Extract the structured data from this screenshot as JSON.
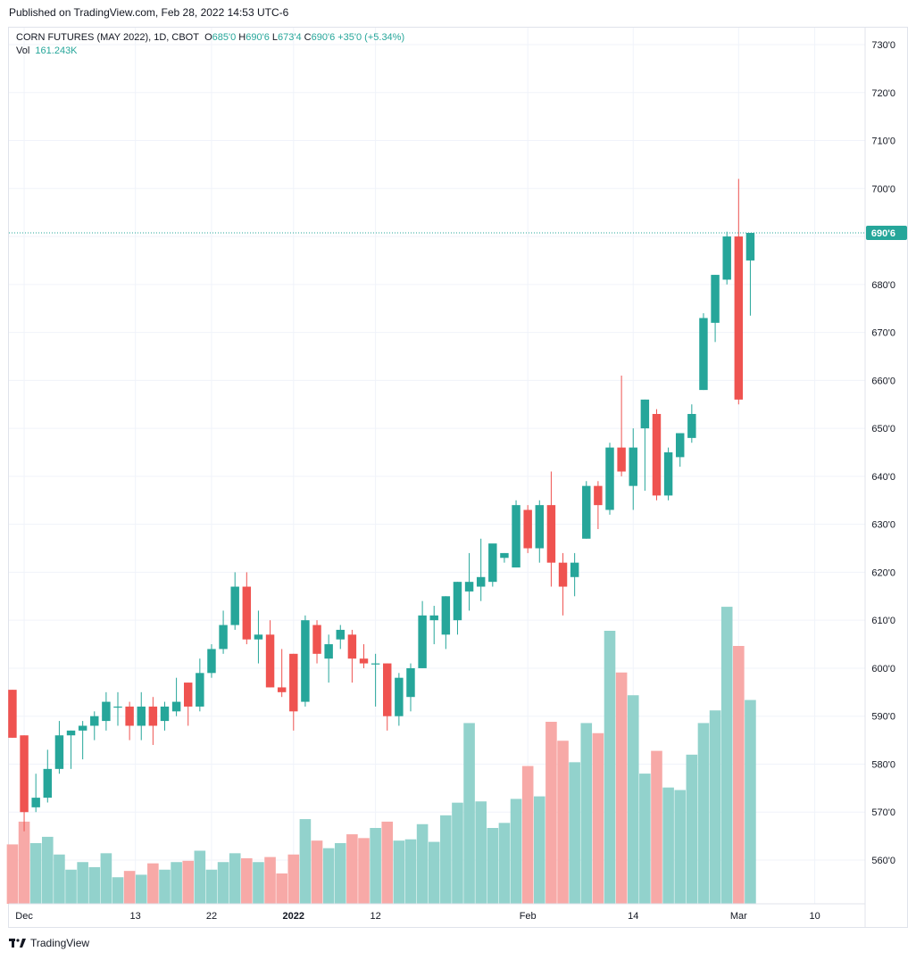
{
  "header": {
    "published_text": "Published on TradingView.com, Feb 28, 2022 14:53 UTC-6"
  },
  "legend": {
    "symbol": "CORN FUTURES (MAY 2022), 1D, CBOT",
    "o_label": "O",
    "o_value": "685'0",
    "h_label": "H",
    "h_value": "690'6",
    "l_label": "L",
    "l_value": "673'4",
    "c_label": "C",
    "c_value": "690'6",
    "change": "+35'0 (+5.34%)",
    "vol_label": "Vol",
    "vol_value": "161.243K"
  },
  "footer": {
    "brand": "TradingView"
  },
  "colors": {
    "up": "#26a69a",
    "down": "#ef5350",
    "vol_up": "#92d2cc",
    "vol_down": "#f7a9a7",
    "grid": "#f0f3fa",
    "axis_text": "#131722"
  },
  "chart_data": {
    "type": "candlestick",
    "title": "CORN FUTURES (MAY 2022), 1D, CBOT",
    "last_price_label": "690'6",
    "last_price": 690.75,
    "ylim": [
      552,
      732
    ],
    "volume_max_k": 180,
    "y_tick_labels": [
      "730'0",
      "720'0",
      "710'0",
      "700'0",
      "690'0",
      "680'0",
      "670'0",
      "660'0",
      "650'0",
      "640'0",
      "630'0",
      "620'0",
      "610'0",
      "600'0",
      "590'0",
      "580'0",
      "570'0",
      "560'0"
    ],
    "y_tick_values": [
      730,
      720,
      710,
      700,
      690,
      680,
      670,
      660,
      650,
      640,
      630,
      620,
      610,
      600,
      590,
      580,
      570,
      560
    ],
    "x_tick_labels": [
      "Dec",
      "13",
      "22",
      "2022",
      "12",
      "Feb",
      "14",
      "Mar",
      "10"
    ],
    "x_tick_index": [
      1,
      10.5,
      17,
      24,
      31,
      44,
      53,
      62,
      68.5
    ],
    "x_tick_bold": [
      false,
      false,
      false,
      true,
      false,
      false,
      false,
      false,
      false
    ],
    "index_range": [
      -0.3,
      72.8
    ],
    "candles": [
      {
        "o": 595.5,
        "h": 595.5,
        "l": 585.5,
        "c": 585.5,
        "v": 47
      },
      {
        "o": 586,
        "h": 586,
        "l": 566,
        "c": 570,
        "v": 65
      },
      {
        "o": 571,
        "h": 578,
        "l": 570,
        "c": 573,
        "v": 48
      },
      {
        "o": 573,
        "h": 583,
        "l": 572,
        "c": 579,
        "v": 53
      },
      {
        "o": 579,
        "h": 589,
        "l": 578,
        "c": 586,
        "v": 39
      },
      {
        "o": 586,
        "h": 587,
        "l": 579,
        "c": 587,
        "v": 27
      },
      {
        "o": 587,
        "h": 589,
        "l": 581,
        "c": 588,
        "v": 33
      },
      {
        "o": 588,
        "h": 591,
        "l": 585,
        "c": 590,
        "v": 29
      },
      {
        "o": 589,
        "h": 595,
        "l": 587,
        "c": 593,
        "v": 40
      },
      {
        "o": 592,
        "h": 595,
        "l": 588,
        "c": 592,
        "v": 21
      },
      {
        "o": 592,
        "h": 593,
        "l": 585,
        "c": 588,
        "v": 26
      },
      {
        "o": 588,
        "h": 595,
        "l": 585,
        "c": 592,
        "v": 23
      },
      {
        "o": 592,
        "h": 594,
        "l": 584,
        "c": 588,
        "v": 32
      },
      {
        "o": 589,
        "h": 593,
        "l": 587,
        "c": 592,
        "v": 27
      },
      {
        "o": 591,
        "h": 598,
        "l": 590,
        "c": 593,
        "v": 33
      },
      {
        "o": 597,
        "h": 597,
        "l": 588,
        "c": 592,
        "v": 34
      },
      {
        "o": 592,
        "h": 602,
        "l": 591,
        "c": 599,
        "v": 42
      },
      {
        "o": 599,
        "h": 605,
        "l": 598,
        "c": 604,
        "v": 27
      },
      {
        "o": 604,
        "h": 612,
        "l": 603,
        "c": 609,
        "v": 33
      },
      {
        "o": 609,
        "h": 620,
        "l": 608,
        "c": 617,
        "v": 40
      },
      {
        "o": 617,
        "h": 620,
        "l": 605,
        "c": 606,
        "v": 36
      },
      {
        "o": 606,
        "h": 612,
        "l": 601,
        "c": 607,
        "v": 33
      },
      {
        "o": 607,
        "h": 610,
        "l": 596,
        "c": 596,
        "v": 37
      },
      {
        "o": 596,
        "h": 604,
        "l": 594,
        "c": 595,
        "v": 24
      },
      {
        "o": 603,
        "h": 603,
        "l": 587,
        "c": 591,
        "v": 39
      },
      {
        "o": 593,
        "h": 611,
        "l": 592,
        "c": 610,
        "v": 67
      },
      {
        "o": 609,
        "h": 610,
        "l": 601,
        "c": 603,
        "v": 50
      },
      {
        "o": 602,
        "h": 607,
        "l": 597,
        "c": 605,
        "v": 44
      },
      {
        "o": 606,
        "h": 609,
        "l": 604,
        "c": 608,
        "v": 48
      },
      {
        "o": 607,
        "h": 608,
        "l": 597,
        "c": 602,
        "v": 55
      },
      {
        "o": 602,
        "h": 605,
        "l": 600,
        "c": 601,
        "v": 52
      },
      {
        "o": 601,
        "h": 603,
        "l": 592,
        "c": 601,
        "v": 60
      },
      {
        "o": 601,
        "h": 601,
        "l": 587,
        "c": 590,
        "v": 65
      },
      {
        "o": 590,
        "h": 599,
        "l": 588,
        "c": 598,
        "v": 50
      },
      {
        "o": 594,
        "h": 601,
        "l": 591,
        "c": 600,
        "v": 51
      },
      {
        "o": 600,
        "h": 614,
        "l": 600,
        "c": 611,
        "v": 63
      },
      {
        "o": 610,
        "h": 613,
        "l": 605,
        "c": 611,
        "v": 49
      },
      {
        "o": 607,
        "h": 615,
        "l": 604,
        "c": 615,
        "v": 70
      },
      {
        "o": 610,
        "h": 618,
        "l": 607,
        "c": 618,
        "v": 80
      },
      {
        "o": 616,
        "h": 624,
        "l": 612,
        "c": 618,
        "v": 143
      },
      {
        "o": 617,
        "h": 627,
        "l": 614,
        "c": 619,
        "v": 81
      },
      {
        "o": 618,
        "h": 625,
        "l": 617,
        "c": 626,
        "v": 60
      },
      {
        "o": 623,
        "h": 624,
        "l": 622,
        "c": 624,
        "v": 64
      },
      {
        "o": 621,
        "h": 635,
        "l": 621,
        "c": 634,
        "v": 83
      },
      {
        "o": 633,
        "h": 634,
        "l": 624,
        "c": 625,
        "v": 109
      },
      {
        "o": 625,
        "h": 635,
        "l": 622,
        "c": 634,
        "v": 85
      },
      {
        "o": 634,
        "h": 641,
        "l": 617,
        "c": 622,
        "v": 144
      },
      {
        "o": 622,
        "h": 624,
        "l": 611,
        "c": 617,
        "v": 129
      },
      {
        "o": 619,
        "h": 624,
        "l": 615,
        "c": 622,
        "v": 112
      },
      {
        "o": 627,
        "h": 639,
        "l": 627,
        "c": 638,
        "v": 143
      },
      {
        "o": 638,
        "h": 639,
        "l": 629,
        "c": 634,
        "v": 135
      },
      {
        "o": 633,
        "h": 647,
        "l": 632,
        "c": 646,
        "v": 216
      },
      {
        "o": 646,
        "h": 661,
        "l": 640,
        "c": 641,
        "v": 183
      },
      {
        "o": 638,
        "h": 650,
        "l": 633,
        "c": 646,
        "v": 165
      },
      {
        "o": 650,
        "h": 656,
        "l": 637,
        "c": 656,
        "v": 103
      },
      {
        "o": 653,
        "h": 654,
        "l": 635,
        "c": 636,
        "v": 121
      },
      {
        "o": 636,
        "h": 646,
        "l": 635,
        "c": 645,
        "v": 92
      },
      {
        "o": 644,
        "h": 649,
        "l": 642,
        "c": 649,
        "v": 90
      },
      {
        "o": 648,
        "h": 655,
        "l": 647,
        "c": 653,
        "v": 118
      },
      {
        "o": 658,
        "h": 674,
        "l": 658,
        "c": 673,
        "v": 143
      },
      {
        "o": 672,
        "h": 682,
        "l": 668,
        "c": 682,
        "v": 153
      },
      {
        "o": 681,
        "h": 691,
        "l": 680,
        "c": 690,
        "v": 235
      },
      {
        "o": 690,
        "h": 702,
        "l": 655,
        "c": 656,
        "v": 204
      },
      {
        "o": 685,
        "h": 690.75,
        "l": 673.5,
        "c": 690.75,
        "v": 161.243
      }
    ]
  }
}
